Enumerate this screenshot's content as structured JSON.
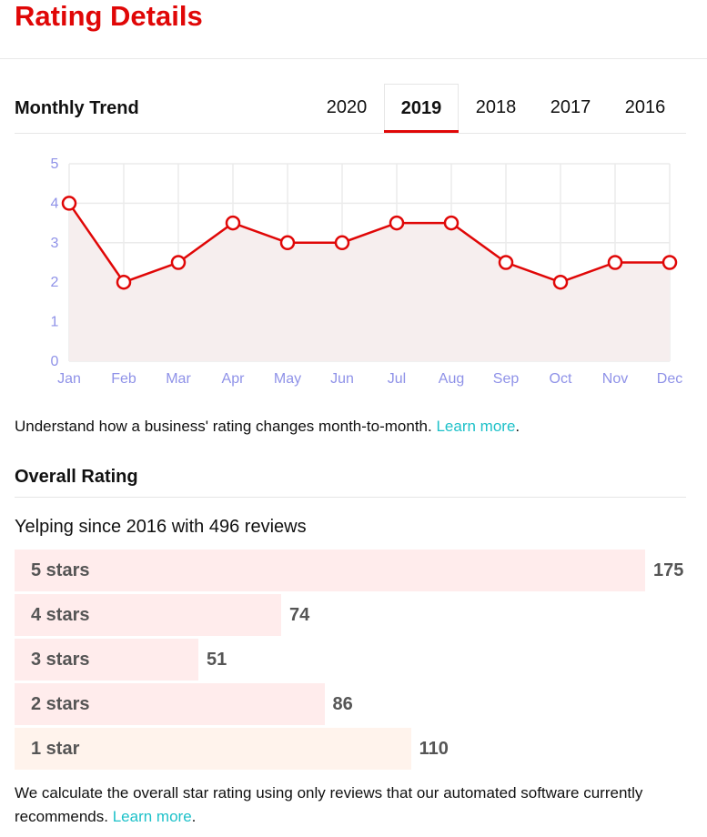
{
  "page_title": "Rating Details",
  "monthly_trend": {
    "title": "Monthly Trend",
    "years": [
      "2020",
      "2019",
      "2018",
      "2017",
      "2016"
    ],
    "selected_year": "2019"
  },
  "chart_data": {
    "type": "line",
    "categories": [
      "Jan",
      "Feb",
      "Mar",
      "Apr",
      "May",
      "Jun",
      "Jul",
      "Aug",
      "Sep",
      "Oct",
      "Nov",
      "Dec"
    ],
    "values": [
      4,
      2,
      2.5,
      3.5,
      3,
      3,
      3.5,
      3.5,
      2.5,
      2,
      2.5,
      2.5
    ],
    "ylim": [
      0,
      5
    ],
    "yticks": [
      0,
      1,
      2,
      3,
      4,
      5
    ],
    "grid": true,
    "colors": {
      "line": "#e00707",
      "fill": "#f6eeee",
      "grid": "#ebebeb",
      "ticks": "#8f92e8"
    }
  },
  "trend_note": {
    "text": "Understand how a business' rating changes month-to-month.",
    "link": "Learn more",
    "end": "."
  },
  "overall": {
    "title": "Overall Rating",
    "summary": "Yelping since 2016 with 496 reviews",
    "rows": [
      {
        "label": "5 stars",
        "count": 175,
        "color": "#ffecec"
      },
      {
        "label": "4 stars",
        "count": 74,
        "color": "#ffecec"
      },
      {
        "label": "3 stars",
        "count": 51,
        "color": "#ffecec"
      },
      {
        "label": "2 stars",
        "count": 86,
        "color": "#ffecec"
      },
      {
        "label": "1 star",
        "count": 110,
        "color": "#fff3ec"
      }
    ],
    "footnote": "We calculate the overall star rating using only reviews that our automated software currently recommends.",
    "footnote_link": "Learn more",
    "footnote_end": "."
  }
}
